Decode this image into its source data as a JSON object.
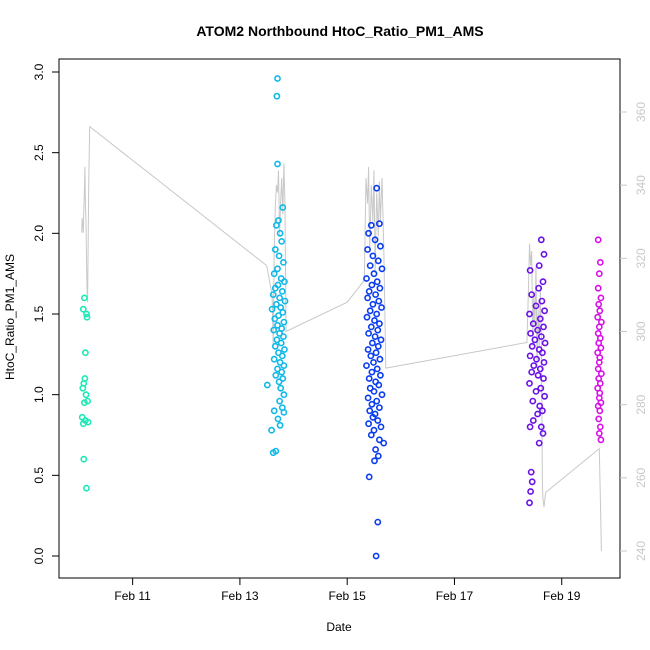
{
  "chart_data": {
    "type": "scatter",
    "title": "ATOM2 Northbound HtoC_Ratio_PM1_AMS",
    "xlabel": "Date",
    "ylabel": "HtoC_Ratio_PM1_AMS",
    "x_ticks": [
      {
        "day": 11,
        "label": "Feb 11"
      },
      {
        "day": 13,
        "label": "Feb 13"
      },
      {
        "day": 15,
        "label": "Feb 15"
      },
      {
        "day": 17,
        "label": "Feb 17"
      },
      {
        "day": 19,
        "label": "Feb 19"
      }
    ],
    "xlim": [
      10,
      19.9
    ],
    "ylim": [
      0,
      3.0
    ],
    "y_ticks": [
      "0.0",
      "0.5",
      "1.0",
      "1.5",
      "2.0",
      "2.5",
      "3.0"
    ],
    "y2_ticks": [
      "240",
      "260",
      "280",
      "300",
      "320",
      "340",
      "360"
    ],
    "y2lim": [
      240,
      362
    ],
    "colors": {
      "c1": "#1de9b6",
      "c2": "#10b8e8",
      "c3": "#0a3cf0",
      "c4": "#6a10e8",
      "c5": "#d811e8",
      "secondary_line": "#c8c8c8"
    },
    "series": [
      {
        "color": "#1de9b6",
        "points": [
          [
            10.1,
            1.6
          ],
          [
            10.08,
            1.53
          ],
          [
            10.14,
            1.5
          ],
          [
            10.15,
            1.48
          ],
          [
            10.12,
            1.26
          ],
          [
            10.11,
            1.1
          ],
          [
            10.09,
            1.07
          ],
          [
            10.07,
            1.04
          ],
          [
            10.13,
            1.0
          ],
          [
            10.16,
            0.96
          ],
          [
            10.1,
            0.95
          ],
          [
            10.06,
            0.86
          ],
          [
            10.12,
            0.84
          ],
          [
            10.17,
            0.83
          ],
          [
            10.08,
            0.82
          ],
          [
            10.09,
            0.6
          ],
          [
            10.14,
            0.42
          ]
        ]
      },
      {
        "color": "#10b8e8",
        "points": [
          [
            13.7,
            2.96
          ],
          [
            13.69,
            2.85
          ],
          [
            13.7,
            2.43
          ],
          [
            13.8,
            2.16
          ],
          [
            13.72,
            2.08
          ],
          [
            13.68,
            2.05
          ],
          [
            13.75,
            2.0
          ],
          [
            13.78,
            1.95
          ],
          [
            13.66,
            1.9
          ],
          [
            13.73,
            1.86
          ],
          [
            13.81,
            1.82
          ],
          [
            13.7,
            1.78
          ],
          [
            13.64,
            1.75
          ],
          [
            13.77,
            1.72
          ],
          [
            13.83,
            1.7
          ],
          [
            13.71,
            1.68
          ],
          [
            13.66,
            1.66
          ],
          [
            13.79,
            1.64
          ],
          [
            13.62,
            1.62
          ],
          [
            13.74,
            1.6
          ],
          [
            13.84,
            1.58
          ],
          [
            13.68,
            1.56
          ],
          [
            13.76,
            1.54
          ],
          [
            13.6,
            1.53
          ],
          [
            13.8,
            1.51
          ],
          [
            13.72,
            1.49
          ],
          [
            13.65,
            1.47
          ],
          [
            13.82,
            1.45
          ],
          [
            13.7,
            1.43
          ],
          [
            13.78,
            1.41
          ],
          [
            13.63,
            1.4
          ],
          [
            13.74,
            1.38
          ],
          [
            13.81,
            1.36
          ],
          [
            13.69,
            1.34
          ],
          [
            13.77,
            1.32
          ],
          [
            13.66,
            1.3
          ],
          [
            13.83,
            1.28
          ],
          [
            13.72,
            1.26
          ],
          [
            13.79,
            1.24
          ],
          [
            13.64,
            1.22
          ],
          [
            13.75,
            1.2
          ],
          [
            13.82,
            1.18
          ],
          [
            13.7,
            1.16
          ],
          [
            13.78,
            1.14
          ],
          [
            13.67,
            1.12
          ],
          [
            13.8,
            1.1
          ],
          [
            13.73,
            1.08
          ],
          [
            13.51,
            1.06
          ],
          [
            13.76,
            1.04
          ],
          [
            13.82,
            1.0
          ],
          [
            13.74,
            0.96
          ],
          [
            13.79,
            0.92
          ],
          [
            13.64,
            0.9
          ],
          [
            13.82,
            0.89
          ],
          [
            13.71,
            0.85
          ],
          [
            13.75,
            0.81
          ],
          [
            13.59,
            0.78
          ],
          [
            13.67,
            0.65
          ],
          [
            13.62,
            0.64
          ]
        ]
      },
      {
        "color": "#0a3cf0",
        "points": [
          [
            15.55,
            2.28
          ],
          [
            15.45,
            2.05
          ],
          [
            15.6,
            2.06
          ],
          [
            15.4,
            2.0
          ],
          [
            15.52,
            1.96
          ],
          [
            15.62,
            1.92
          ],
          [
            15.38,
            1.9
          ],
          [
            15.48,
            1.86
          ],
          [
            15.58,
            1.83
          ],
          [
            15.43,
            1.8
          ],
          [
            15.65,
            1.78
          ],
          [
            15.5,
            1.75
          ],
          [
            15.36,
            1.72
          ],
          [
            15.56,
            1.7
          ],
          [
            15.46,
            1.68
          ],
          [
            15.61,
            1.66
          ],
          [
            15.41,
            1.64
          ],
          [
            15.53,
            1.62
          ],
          [
            15.38,
            1.6
          ],
          [
            15.59,
            1.58
          ],
          [
            15.48,
            1.56
          ],
          [
            15.64,
            1.54
          ],
          [
            15.43,
            1.52
          ],
          [
            15.55,
            1.5
          ],
          [
            15.37,
            1.48
          ],
          [
            15.51,
            1.46
          ],
          [
            15.6,
            1.44
          ],
          [
            15.45,
            1.42
          ],
          [
            15.57,
            1.4
          ],
          [
            15.4,
            1.38
          ],
          [
            15.52,
            1.36
          ],
          [
            15.63,
            1.34
          ],
          [
            15.47,
            1.32
          ],
          [
            15.58,
            1.3
          ],
          [
            15.39,
            1.28
          ],
          [
            15.54,
            1.26
          ],
          [
            15.44,
            1.24
          ],
          [
            15.61,
            1.22
          ],
          [
            15.49,
            1.2
          ],
          [
            15.36,
            1.18
          ],
          [
            15.56,
            1.16
          ],
          [
            15.46,
            1.14
          ],
          [
            15.62,
            1.12
          ],
          [
            15.41,
            1.1
          ],
          [
            15.53,
            1.08
          ],
          [
            15.59,
            1.06
          ],
          [
            15.43,
            1.04
          ],
          [
            15.5,
            1.02
          ],
          [
            15.65,
            1.0
          ],
          [
            15.39,
            0.98
          ],
          [
            15.55,
            0.96
          ],
          [
            15.46,
            0.94
          ],
          [
            15.6,
            0.92
          ],
          [
            15.42,
            0.9
          ],
          [
            15.52,
            0.88
          ],
          [
            15.48,
            0.86
          ],
          [
            15.57,
            0.84
          ],
          [
            15.4,
            0.82
          ],
          [
            15.63,
            0.8
          ],
          [
            15.5,
            0.78
          ],
          [
            15.45,
            0.75
          ],
          [
            15.6,
            0.72
          ],
          [
            15.68,
            0.7
          ],
          [
            15.53,
            0.66
          ],
          [
            15.58,
            0.62
          ],
          [
            15.51,
            0.59
          ],
          [
            15.41,
            0.49
          ],
          [
            15.57,
            0.21
          ],
          [
            15.54,
            0.0
          ]
        ]
      },
      {
        "color": "#6a10e8",
        "points": [
          [
            18.62,
            1.96
          ],
          [
            18.67,
            1.87
          ],
          [
            18.58,
            1.8
          ],
          [
            18.41,
            1.77
          ],
          [
            18.65,
            1.7
          ],
          [
            18.57,
            1.66
          ],
          [
            18.44,
            1.62
          ],
          [
            18.63,
            1.58
          ],
          [
            18.52,
            1.55
          ],
          [
            18.68,
            1.52
          ],
          [
            18.4,
            1.5
          ],
          [
            18.6,
            1.47
          ],
          [
            18.47,
            1.44
          ],
          [
            18.66,
            1.42
          ],
          [
            18.55,
            1.4
          ],
          [
            18.42,
            1.38
          ],
          [
            18.62,
            1.36
          ],
          [
            18.5,
            1.34
          ],
          [
            18.69,
            1.32
          ],
          [
            18.45,
            1.3
          ],
          [
            18.58,
            1.28
          ],
          [
            18.64,
            1.26
          ],
          [
            18.41,
            1.24
          ],
          [
            18.53,
            1.22
          ],
          [
            18.67,
            1.2
          ],
          [
            18.48,
            1.18
          ],
          [
            18.6,
            1.16
          ],
          [
            18.44,
            1.14
          ],
          [
            18.56,
            1.12
          ],
          [
            18.66,
            1.1
          ],
          [
            18.4,
            1.07
          ],
          [
            18.61,
            1.04
          ],
          [
            18.52,
            1.02
          ],
          [
            18.68,
            0.99
          ],
          [
            18.46,
            0.96
          ],
          [
            18.59,
            0.93
          ],
          [
            18.64,
            0.9
          ],
          [
            18.55,
            0.88
          ],
          [
            18.47,
            0.84
          ],
          [
            18.62,
            0.8
          ],
          [
            18.41,
            0.8
          ],
          [
            18.65,
            0.76
          ],
          [
            18.58,
            0.7
          ],
          [
            18.43,
            0.52
          ],
          [
            18.45,
            0.46
          ],
          [
            18.42,
            0.4
          ],
          [
            18.4,
            0.33
          ]
        ]
      },
      {
        "color": "#d811e8",
        "points": [
          [
            19.68,
            1.96
          ],
          [
            19.72,
            1.82
          ],
          [
            19.7,
            1.75
          ],
          [
            19.68,
            1.66
          ],
          [
            19.73,
            1.6
          ],
          [
            19.69,
            1.56
          ],
          [
            19.71,
            1.52
          ],
          [
            19.67,
            1.48
          ],
          [
            19.74,
            1.45
          ],
          [
            19.7,
            1.42
          ],
          [
            19.68,
            1.38
          ],
          [
            19.72,
            1.35
          ],
          [
            19.69,
            1.32
          ],
          [
            19.73,
            1.29
          ],
          [
            19.67,
            1.26
          ],
          [
            19.71,
            1.23
          ],
          [
            19.7,
            1.2
          ],
          [
            19.68,
            1.16
          ],
          [
            19.74,
            1.13
          ],
          [
            19.69,
            1.1
          ],
          [
            19.72,
            1.07
          ],
          [
            19.67,
            1.04
          ],
          [
            19.71,
            1.01
          ],
          [
            19.7,
            0.98
          ],
          [
            19.73,
            0.95
          ],
          [
            19.68,
            0.93
          ],
          [
            19.71,
            0.9
          ],
          [
            19.69,
            0.85
          ],
          [
            19.72,
            0.8
          ],
          [
            19.7,
            0.76
          ],
          [
            19.73,
            0.72
          ]
        ]
      }
    ],
    "secondary_line": [
      [
        10.05,
        327
      ],
      [
        10.06,
        331
      ],
      [
        10.07,
        329
      ],
      [
        10.08,
        327
      ],
      [
        10.09,
        333
      ],
      [
        10.1,
        338
      ],
      [
        10.11,
        345
      ],
      [
        10.12,
        335
      ],
      [
        10.13,
        330
      ],
      [
        10.14,
        320
      ],
      [
        10.15,
        312
      ],
      [
        10.16,
        308
      ],
      [
        10.18,
        340
      ],
      [
        10.2,
        356
      ],
      [
        13.5,
        318
      ],
      [
        13.6,
        310
      ],
      [
        13.62,
        296
      ],
      [
        13.64,
        322
      ],
      [
        13.66,
        334
      ],
      [
        13.68,
        340
      ],
      [
        13.7,
        338
      ],
      [
        13.72,
        344
      ],
      [
        13.74,
        326
      ],
      [
        13.76,
        336
      ],
      [
        13.78,
        342
      ],
      [
        13.8,
        332
      ],
      [
        13.82,
        346
      ],
      [
        13.84,
        334
      ],
      [
        13.86,
        300
      ],
      [
        15.0,
        308
      ],
      [
        15.32,
        314
      ],
      [
        15.35,
        342
      ],
      [
        15.38,
        335
      ],
      [
        15.4,
        345
      ],
      [
        15.42,
        322
      ],
      [
        15.45,
        340
      ],
      [
        15.48,
        330
      ],
      [
        15.5,
        344
      ],
      [
        15.52,
        316
      ],
      [
        15.55,
        338
      ],
      [
        15.58,
        326
      ],
      [
        15.6,
        341
      ],
      [
        15.62,
        330
      ],
      [
        15.65,
        342
      ],
      [
        15.68,
        324
      ],
      [
        15.72,
        290
      ],
      [
        18.35,
        297
      ],
      [
        18.38,
        312
      ],
      [
        18.4,
        324
      ],
      [
        18.42,
        318
      ],
      [
        18.44,
        322
      ],
      [
        18.46,
        296
      ],
      [
        18.48,
        310
      ],
      [
        18.5,
        302
      ],
      [
        18.52,
        318
      ],
      [
        18.54,
        290
      ],
      [
        18.56,
        306
      ],
      [
        18.58,
        296
      ],
      [
        18.6,
        312
      ],
      [
        18.62,
        300
      ],
      [
        18.63,
        278
      ],
      [
        18.64,
        258
      ],
      [
        18.65,
        254
      ],
      [
        18.67,
        252
      ],
      [
        18.7,
        256
      ],
      [
        19.7,
        268
      ],
      [
        19.72,
        255
      ],
      [
        19.74,
        240
      ]
    ]
  }
}
